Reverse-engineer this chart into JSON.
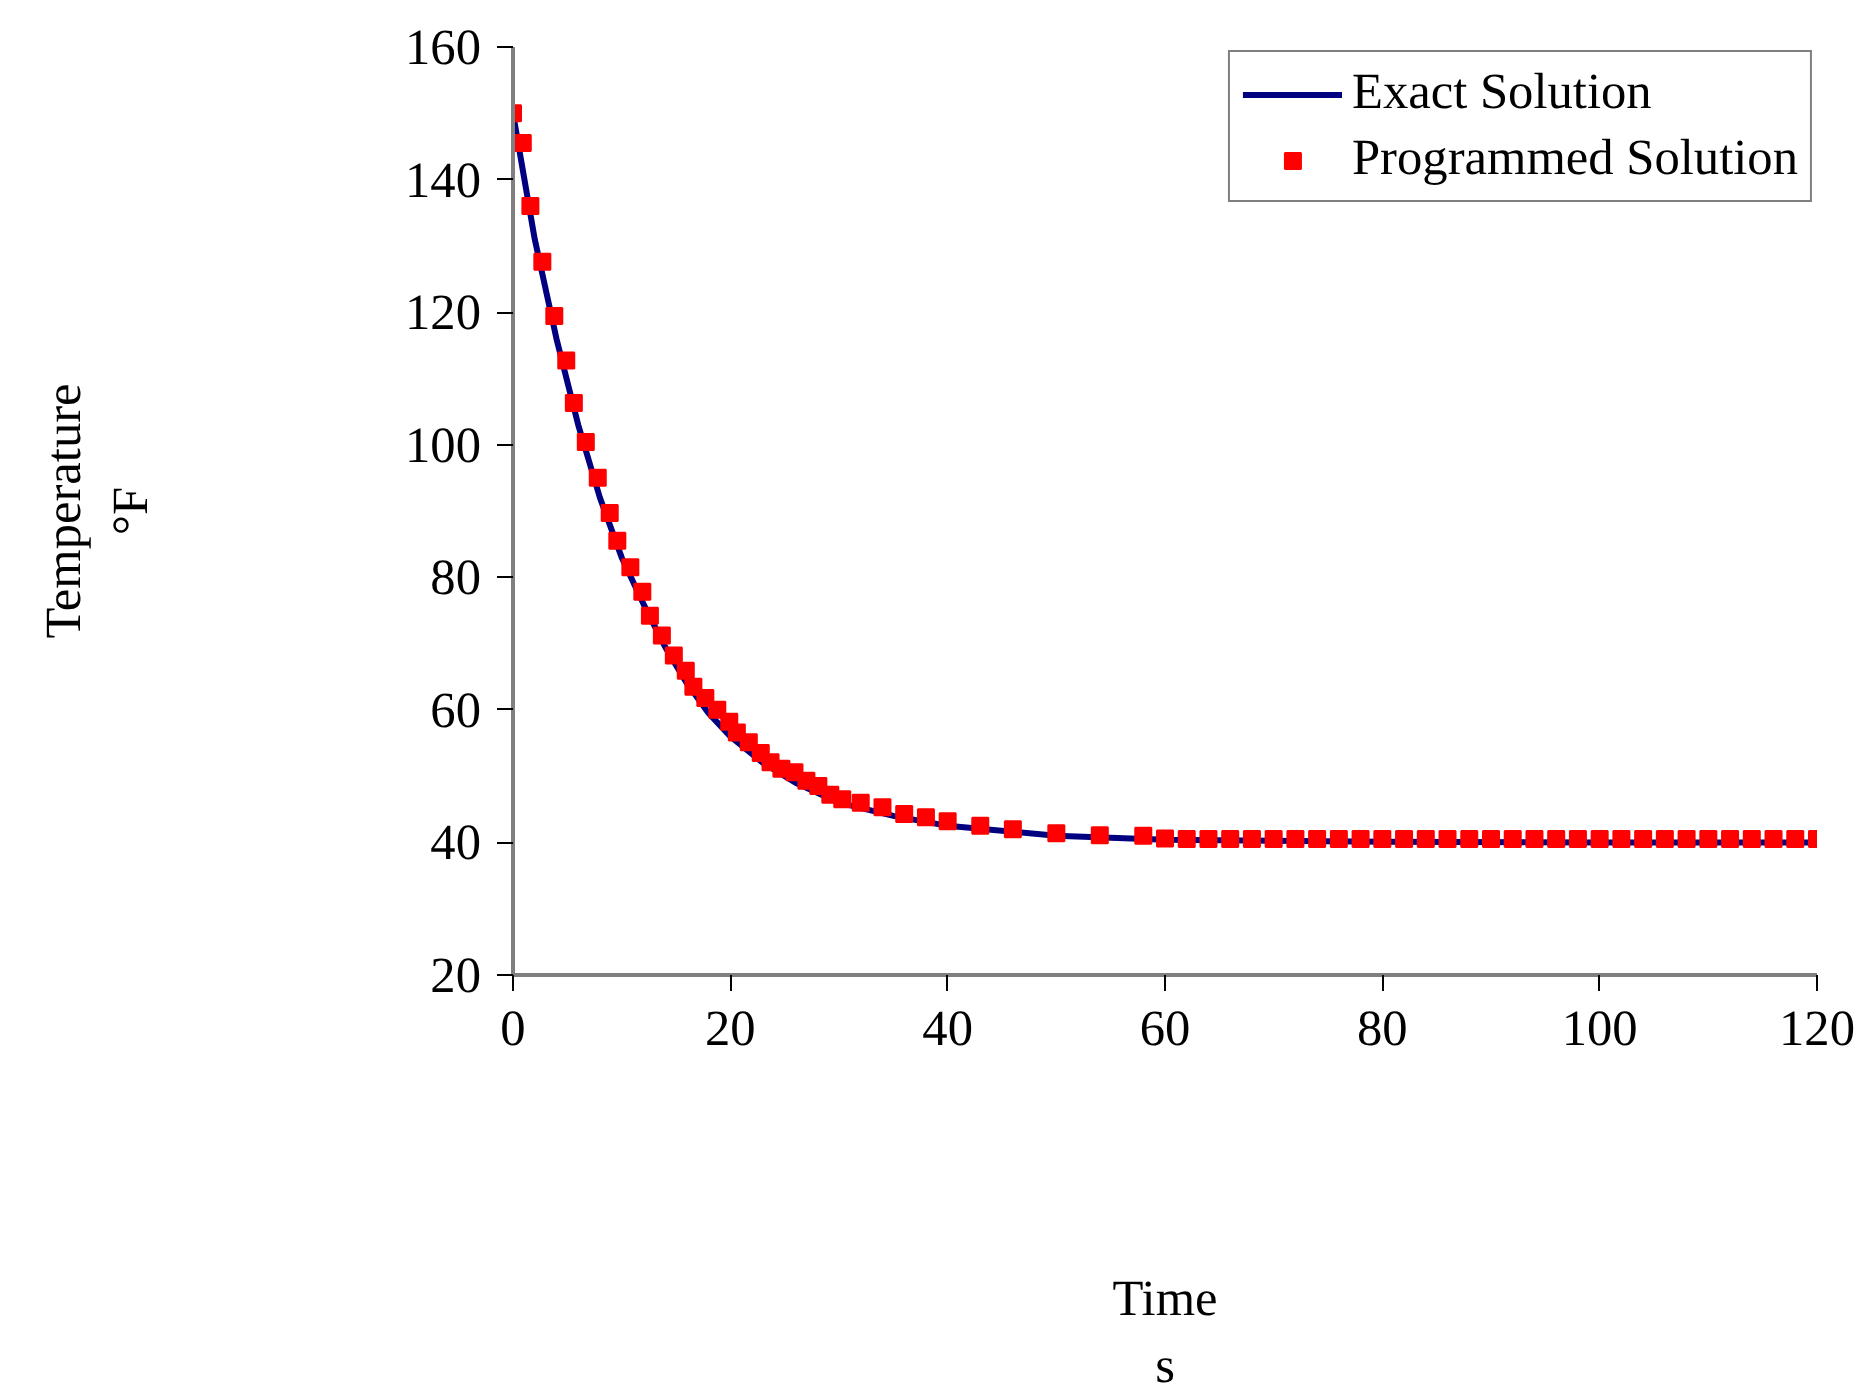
{
  "chart_data": {
    "type": "line",
    "xlabel": "Time\ns",
    "ylabel": "Temperature\n°F",
    "xlim": [
      0,
      120
    ],
    "ylim": [
      20,
      160
    ],
    "xticks": [
      0,
      20,
      40,
      60,
      80,
      100,
      120
    ],
    "yticks": [
      20,
      40,
      60,
      80,
      100,
      120,
      140,
      160
    ],
    "grid": false,
    "legend": "top right",
    "series": [
      {
        "name": "Exact Solution",
        "color": "#000080",
        "marker": "none",
        "x": [
          0,
          2,
          4,
          6,
          8,
          10,
          12,
          14,
          16,
          18,
          20,
          23,
          26,
          30,
          35,
          40,
          50,
          60,
          80,
          100,
          120
        ],
        "values": [
          150,
          131,
          116,
          103,
          92,
          83,
          76,
          69.5,
          64,
          59.5,
          56,
          52,
          49,
          46,
          44,
          42.5,
          41,
          40.4,
          40.1,
          40,
          40
        ]
      },
      {
        "name": "Programmed Solution",
        "type": "scatter",
        "color": "#ff0000",
        "marker": "square",
        "x": [
          0,
          0.9,
          1.6,
          2.7,
          3.8,
          4.9,
          5.6,
          6.7,
          7.8,
          8.9,
          9.6,
          10.8,
          11.9,
          12.6,
          13.7,
          14.8,
          15.9,
          16.6,
          17.7,
          18.8,
          19.9,
          20.6,
          21.7,
          22.8,
          23.7,
          24.7,
          25.9,
          27,
          28.1,
          29.2,
          30.3,
          32,
          34,
          36,
          38,
          40,
          43,
          46,
          50,
          54,
          58,
          60,
          62,
          64,
          66,
          68,
          70,
          72,
          74,
          76,
          78,
          80,
          82,
          84,
          86,
          88,
          90,
          92,
          94,
          96,
          98,
          100,
          102,
          104,
          106,
          108,
          110,
          112,
          114,
          116,
          118,
          120
        ],
        "values": [
          150,
          145.5,
          136,
          127.6,
          119.4,
          112.7,
          106.3,
          100.4,
          95,
          89.7,
          85.5,
          81.5,
          77.8,
          74.2,
          71.2,
          68.2,
          65.9,
          63.5,
          61.8,
          60,
          58.2,
          56.6,
          55.1,
          53.5,
          52.1,
          51.1,
          50.6,
          49.3,
          48.5,
          47.2,
          46.5,
          46,
          45.3,
          44.3,
          43.8,
          43.2,
          42.5,
          42,
          41.4,
          41.1,
          41,
          40.6,
          40.5,
          40.5,
          40.5,
          40.5,
          40.5,
          40.5,
          40.5,
          40.5,
          40.5,
          40.5,
          40.5,
          40.5,
          40.5,
          40.5,
          40.5,
          40.5,
          40.5,
          40.5,
          40.5,
          40.5,
          40.5,
          40.5,
          40.5,
          40.5,
          40.5,
          40.5,
          40.5,
          40.5,
          40.5,
          40.5
        ]
      }
    ]
  }
}
